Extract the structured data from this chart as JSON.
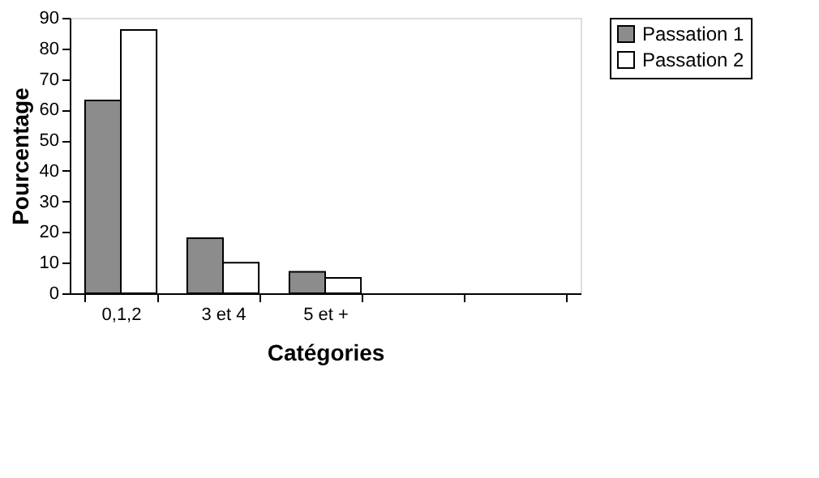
{
  "chart_data": {
    "type": "bar",
    "xlabel": "Catégories",
    "ylabel": "Pourcentage",
    "categories": [
      "0,1,2",
      "3 et 4",
      "5 et +",
      null,
      null
    ],
    "series": [
      {
        "name": "Passation 1",
        "color": "#8c8c8c",
        "values": [
          63,
          18,
          7,
          null,
          null
        ]
      },
      {
        "name": "Passation 2",
        "color": "#ffffff",
        "values": [
          86,
          10,
          5,
          null,
          null
        ]
      }
    ],
    "ylim": [
      0,
      90
    ],
    "yticks": [
      0,
      10,
      20,
      30,
      40,
      50,
      60,
      70,
      80,
      90
    ],
    "grid": false,
    "legend": "right"
  }
}
